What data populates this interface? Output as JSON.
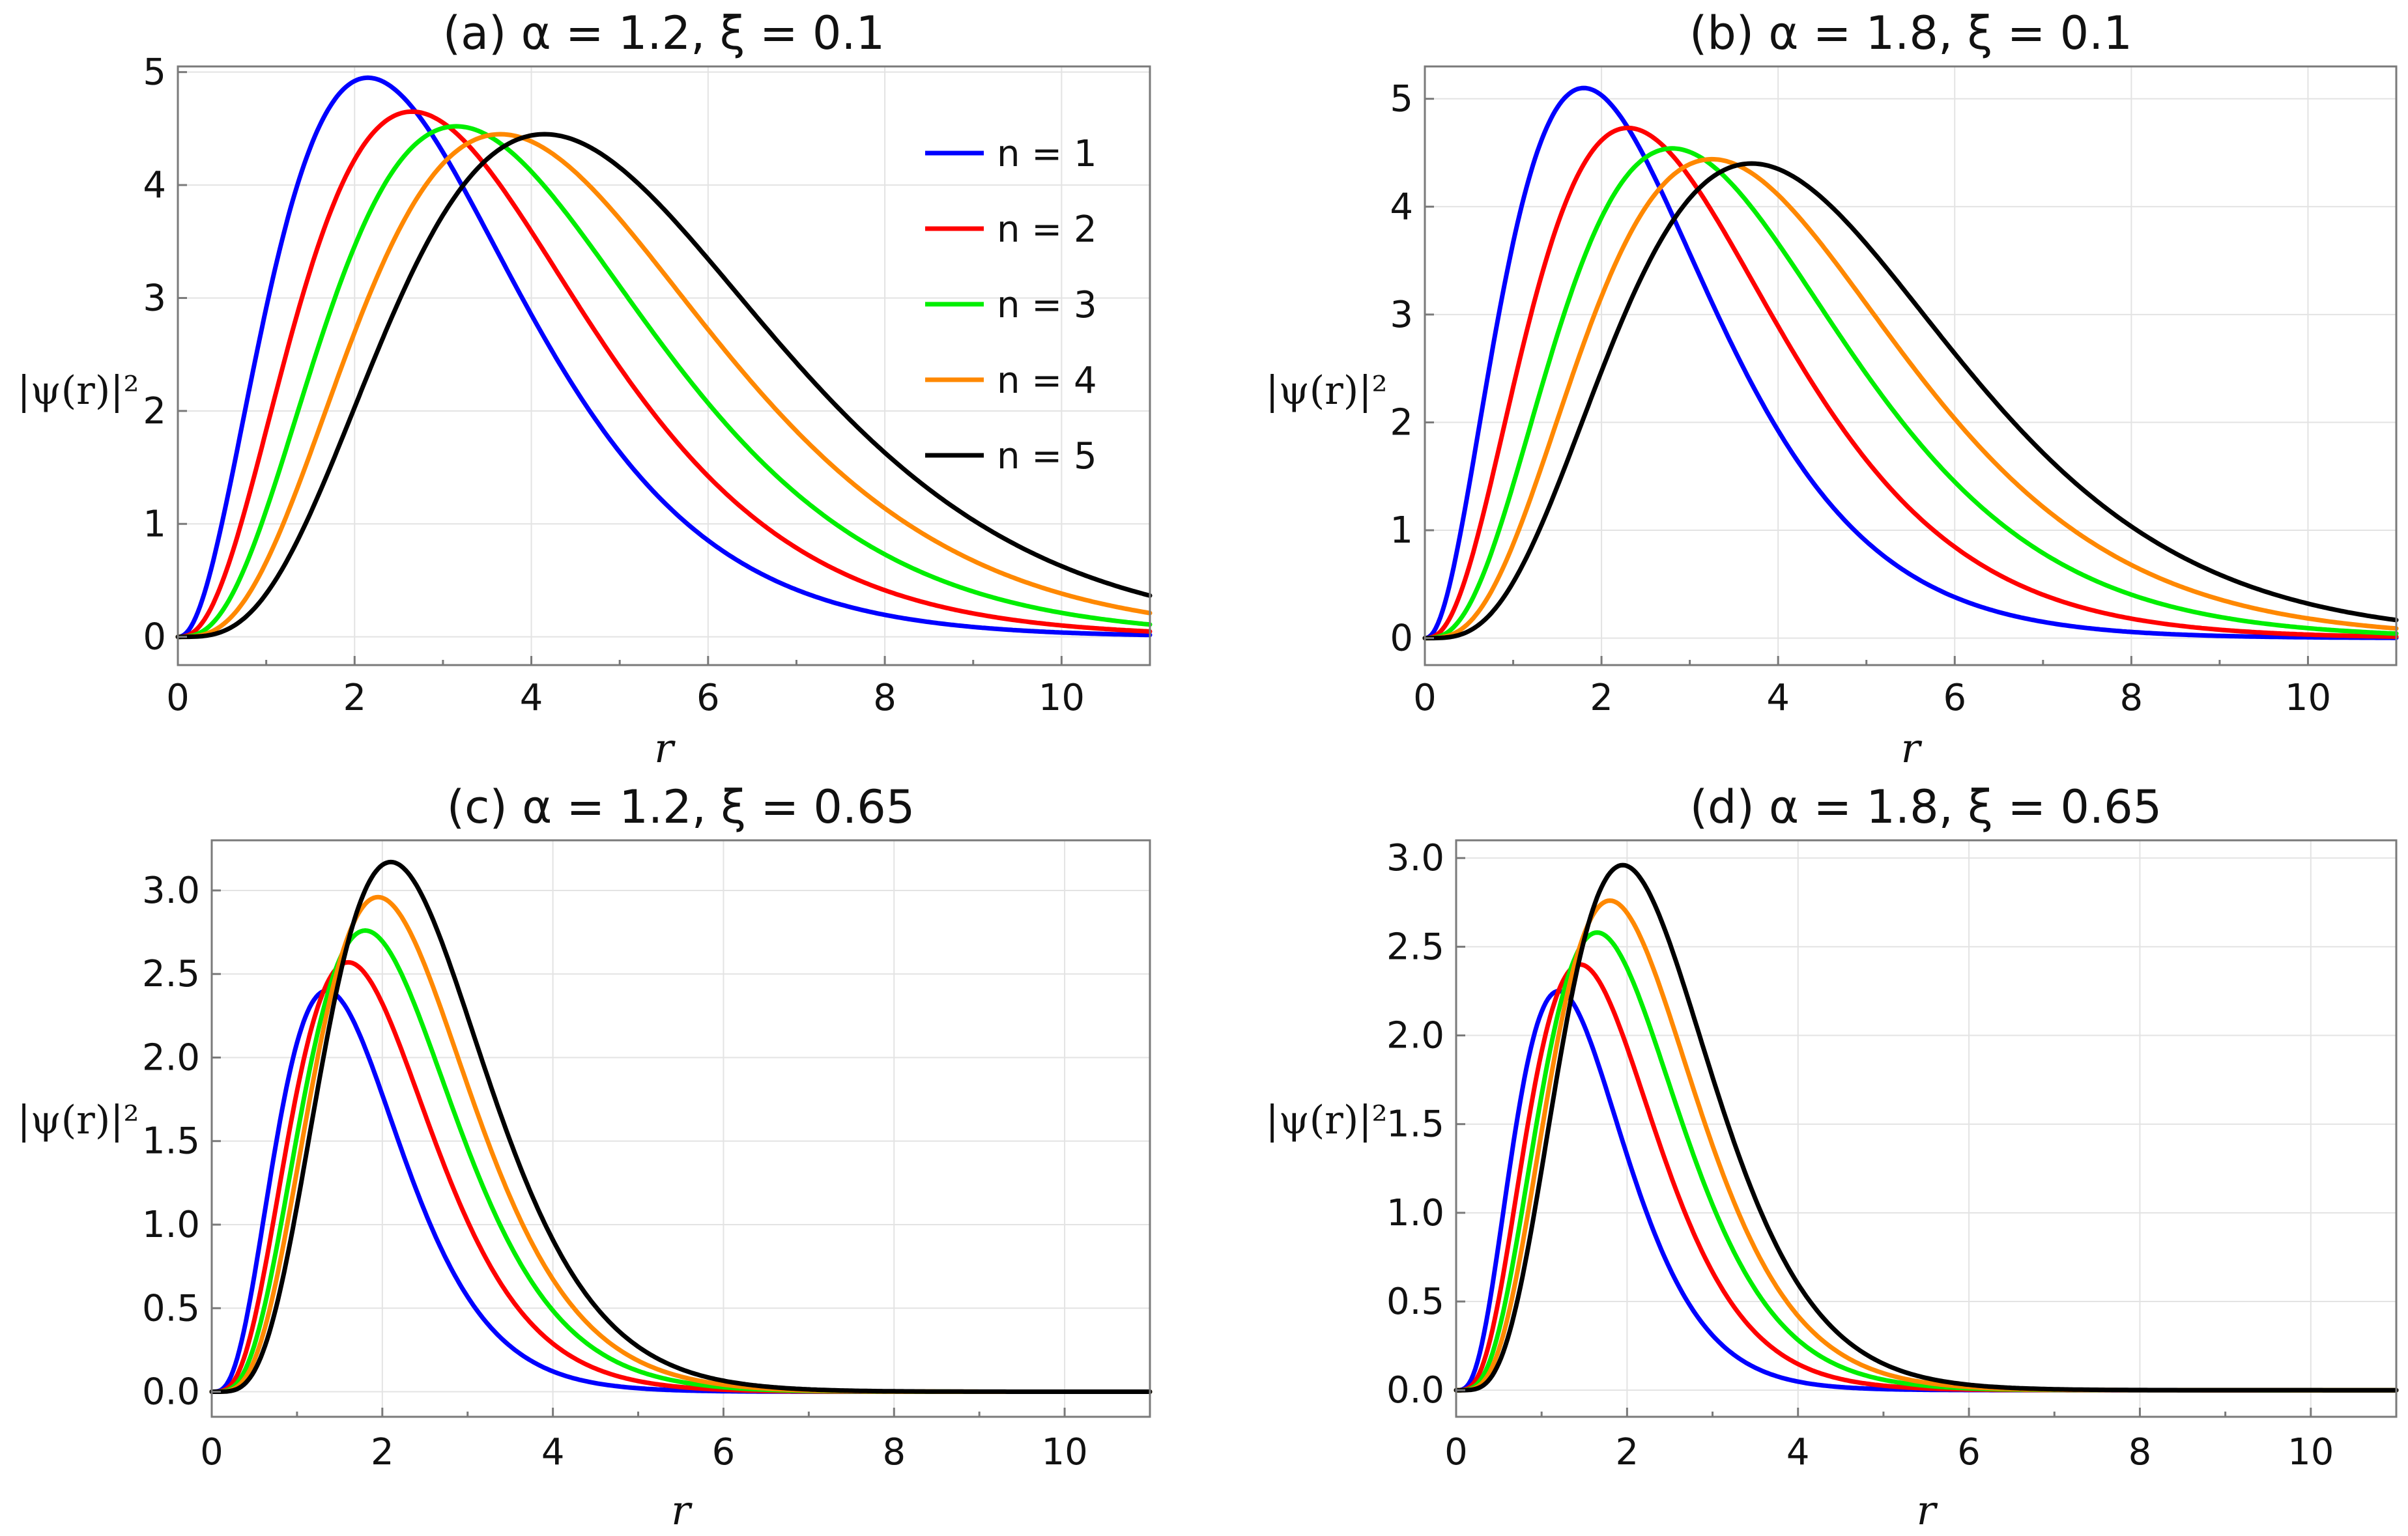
{
  "figure_label": "Probability density |ψ(r)|² vs r for states n = 1..5",
  "legend": {
    "entries": [
      {
        "label": "n = 1",
        "color": "#0000ff"
      },
      {
        "label": "n = 2",
        "color": "#ff0000"
      },
      {
        "label": "n = 3",
        "color": "#00ee00"
      },
      {
        "label": "n = 4",
        "color": "#ff8800"
      },
      {
        "label": "n = 5",
        "color": "#000000"
      }
    ]
  },
  "chart_data": [
    {
      "type": "line",
      "title": "(a) α = 1.2, ξ = 0.1",
      "xlabel": "r",
      "ylabel": "|ψ(r)|²",
      "xlim": [
        0,
        11
      ],
      "ylim": [
        -0.25,
        5.05
      ],
      "xticks": [
        "0",
        "2",
        "4",
        "6",
        "8",
        "10"
      ],
      "yticks": [
        {
          "value": 0,
          "label": "0"
        },
        {
          "value": 1,
          "label": "1"
        },
        {
          "value": 2,
          "label": "2"
        },
        {
          "value": 3,
          "label": "3"
        },
        {
          "value": 4,
          "label": "4"
        },
        {
          "value": 5,
          "label": "5"
        }
      ],
      "series": [
        {
          "name": "n = 1",
          "color": "#0000ff",
          "peak_r": 2.15,
          "peak_value": 4.95
        },
        {
          "name": "n = 2",
          "color": "#ff0000",
          "peak_r": 2.65,
          "peak_value": 4.65
        },
        {
          "name": "n = 3",
          "color": "#00ee00",
          "peak_r": 3.15,
          "peak_value": 4.52
        },
        {
          "name": "n = 4",
          "color": "#ff8800",
          "peak_r": 3.65,
          "peak_value": 4.45
        },
        {
          "name": "n = 5",
          "color": "#000000",
          "peak_r": 4.15,
          "peak_value": 4.45
        }
      ]
    },
    {
      "type": "line",
      "title": "(b) α = 1.8, ξ = 0.1",
      "xlabel": "r",
      "ylabel": "|ψ(r)|²",
      "xlim": [
        0,
        11
      ],
      "ylim": [
        -0.25,
        5.3
      ],
      "xticks": [
        "0",
        "2",
        "4",
        "6",
        "8",
        "10"
      ],
      "yticks": [
        {
          "value": 0,
          "label": "0"
        },
        {
          "value": 1,
          "label": "1"
        },
        {
          "value": 2,
          "label": "2"
        },
        {
          "value": 3,
          "label": "3"
        },
        {
          "value": 4,
          "label": "4"
        },
        {
          "value": 5,
          "label": "5"
        }
      ],
      "series": [
        {
          "name": "n = 1",
          "color": "#0000ff",
          "peak_r": 1.8,
          "peak_value": 5.1
        },
        {
          "name": "n = 2",
          "color": "#ff0000",
          "peak_r": 2.3,
          "peak_value": 4.73
        },
        {
          "name": "n = 3",
          "color": "#00ee00",
          "peak_r": 2.8,
          "peak_value": 4.54
        },
        {
          "name": "n = 4",
          "color": "#ff8800",
          "peak_r": 3.25,
          "peak_value": 4.44
        },
        {
          "name": "n = 5",
          "color": "#000000",
          "peak_r": 3.7,
          "peak_value": 4.4
        }
      ]
    },
    {
      "type": "line",
      "title": "(c) α = 1.2, ξ = 0.65",
      "xlabel": "r",
      "ylabel": "|ψ(r)|²",
      "xlim": [
        0,
        11
      ],
      "ylim": [
        -0.15,
        3.3
      ],
      "xticks": [
        "0",
        "2",
        "4",
        "6",
        "8",
        "10"
      ],
      "yticks": [
        {
          "value": 0,
          "label": "0.0"
        },
        {
          "value": 0.5,
          "label": "0.5"
        },
        {
          "value": 1,
          "label": "1.0"
        },
        {
          "value": 1.5,
          "label": "1.5"
        },
        {
          "value": 2,
          "label": "2.0"
        },
        {
          "value": 2.5,
          "label": "2.5"
        },
        {
          "value": 3,
          "label": "3.0"
        }
      ],
      "series": [
        {
          "name": "n = 1",
          "color": "#0000ff",
          "peak_r": 1.35,
          "peak_value": 2.4
        },
        {
          "name": "n = 2",
          "color": "#ff0000",
          "peak_r": 1.6,
          "peak_value": 2.57
        },
        {
          "name": "n = 3",
          "color": "#00ee00",
          "peak_r": 1.8,
          "peak_value": 2.76
        },
        {
          "name": "n = 4",
          "color": "#ff8800",
          "peak_r": 1.95,
          "peak_value": 2.96
        },
        {
          "name": "n = 5",
          "color": "#000000",
          "peak_r": 2.1,
          "peak_value": 3.17
        }
      ]
    },
    {
      "type": "line",
      "title": "(d) α = 1.8, ξ = 0.65",
      "xlabel": "r",
      "ylabel": "|ψ(r)|²",
      "xlim": [
        0,
        11
      ],
      "ylim": [
        -0.15,
        3.1
      ],
      "xticks": [
        "0",
        "2",
        "4",
        "6",
        "8",
        "10"
      ],
      "yticks": [
        {
          "value": 0,
          "label": "0.0"
        },
        {
          "value": 0.5,
          "label": "0.5"
        },
        {
          "value": 1,
          "label": "1.0"
        },
        {
          "value": 1.5,
          "label": "1.5"
        },
        {
          "value": 2,
          "label": "2.0"
        },
        {
          "value": 2.5,
          "label": "2.5"
        },
        {
          "value": 3,
          "label": "3.0"
        }
      ],
      "series": [
        {
          "name": "n = 1",
          "color": "#0000ff",
          "peak_r": 1.2,
          "peak_value": 2.25
        },
        {
          "name": "n = 2",
          "color": "#ff0000",
          "peak_r": 1.45,
          "peak_value": 2.4
        },
        {
          "name": "n = 3",
          "color": "#00ee00",
          "peak_r": 1.65,
          "peak_value": 2.58
        },
        {
          "name": "n = 4",
          "color": "#ff8800",
          "peak_r": 1.8,
          "peak_value": 2.76
        },
        {
          "name": "n = 5",
          "color": "#000000",
          "peak_r": 1.95,
          "peak_value": 2.96
        }
      ]
    }
  ]
}
